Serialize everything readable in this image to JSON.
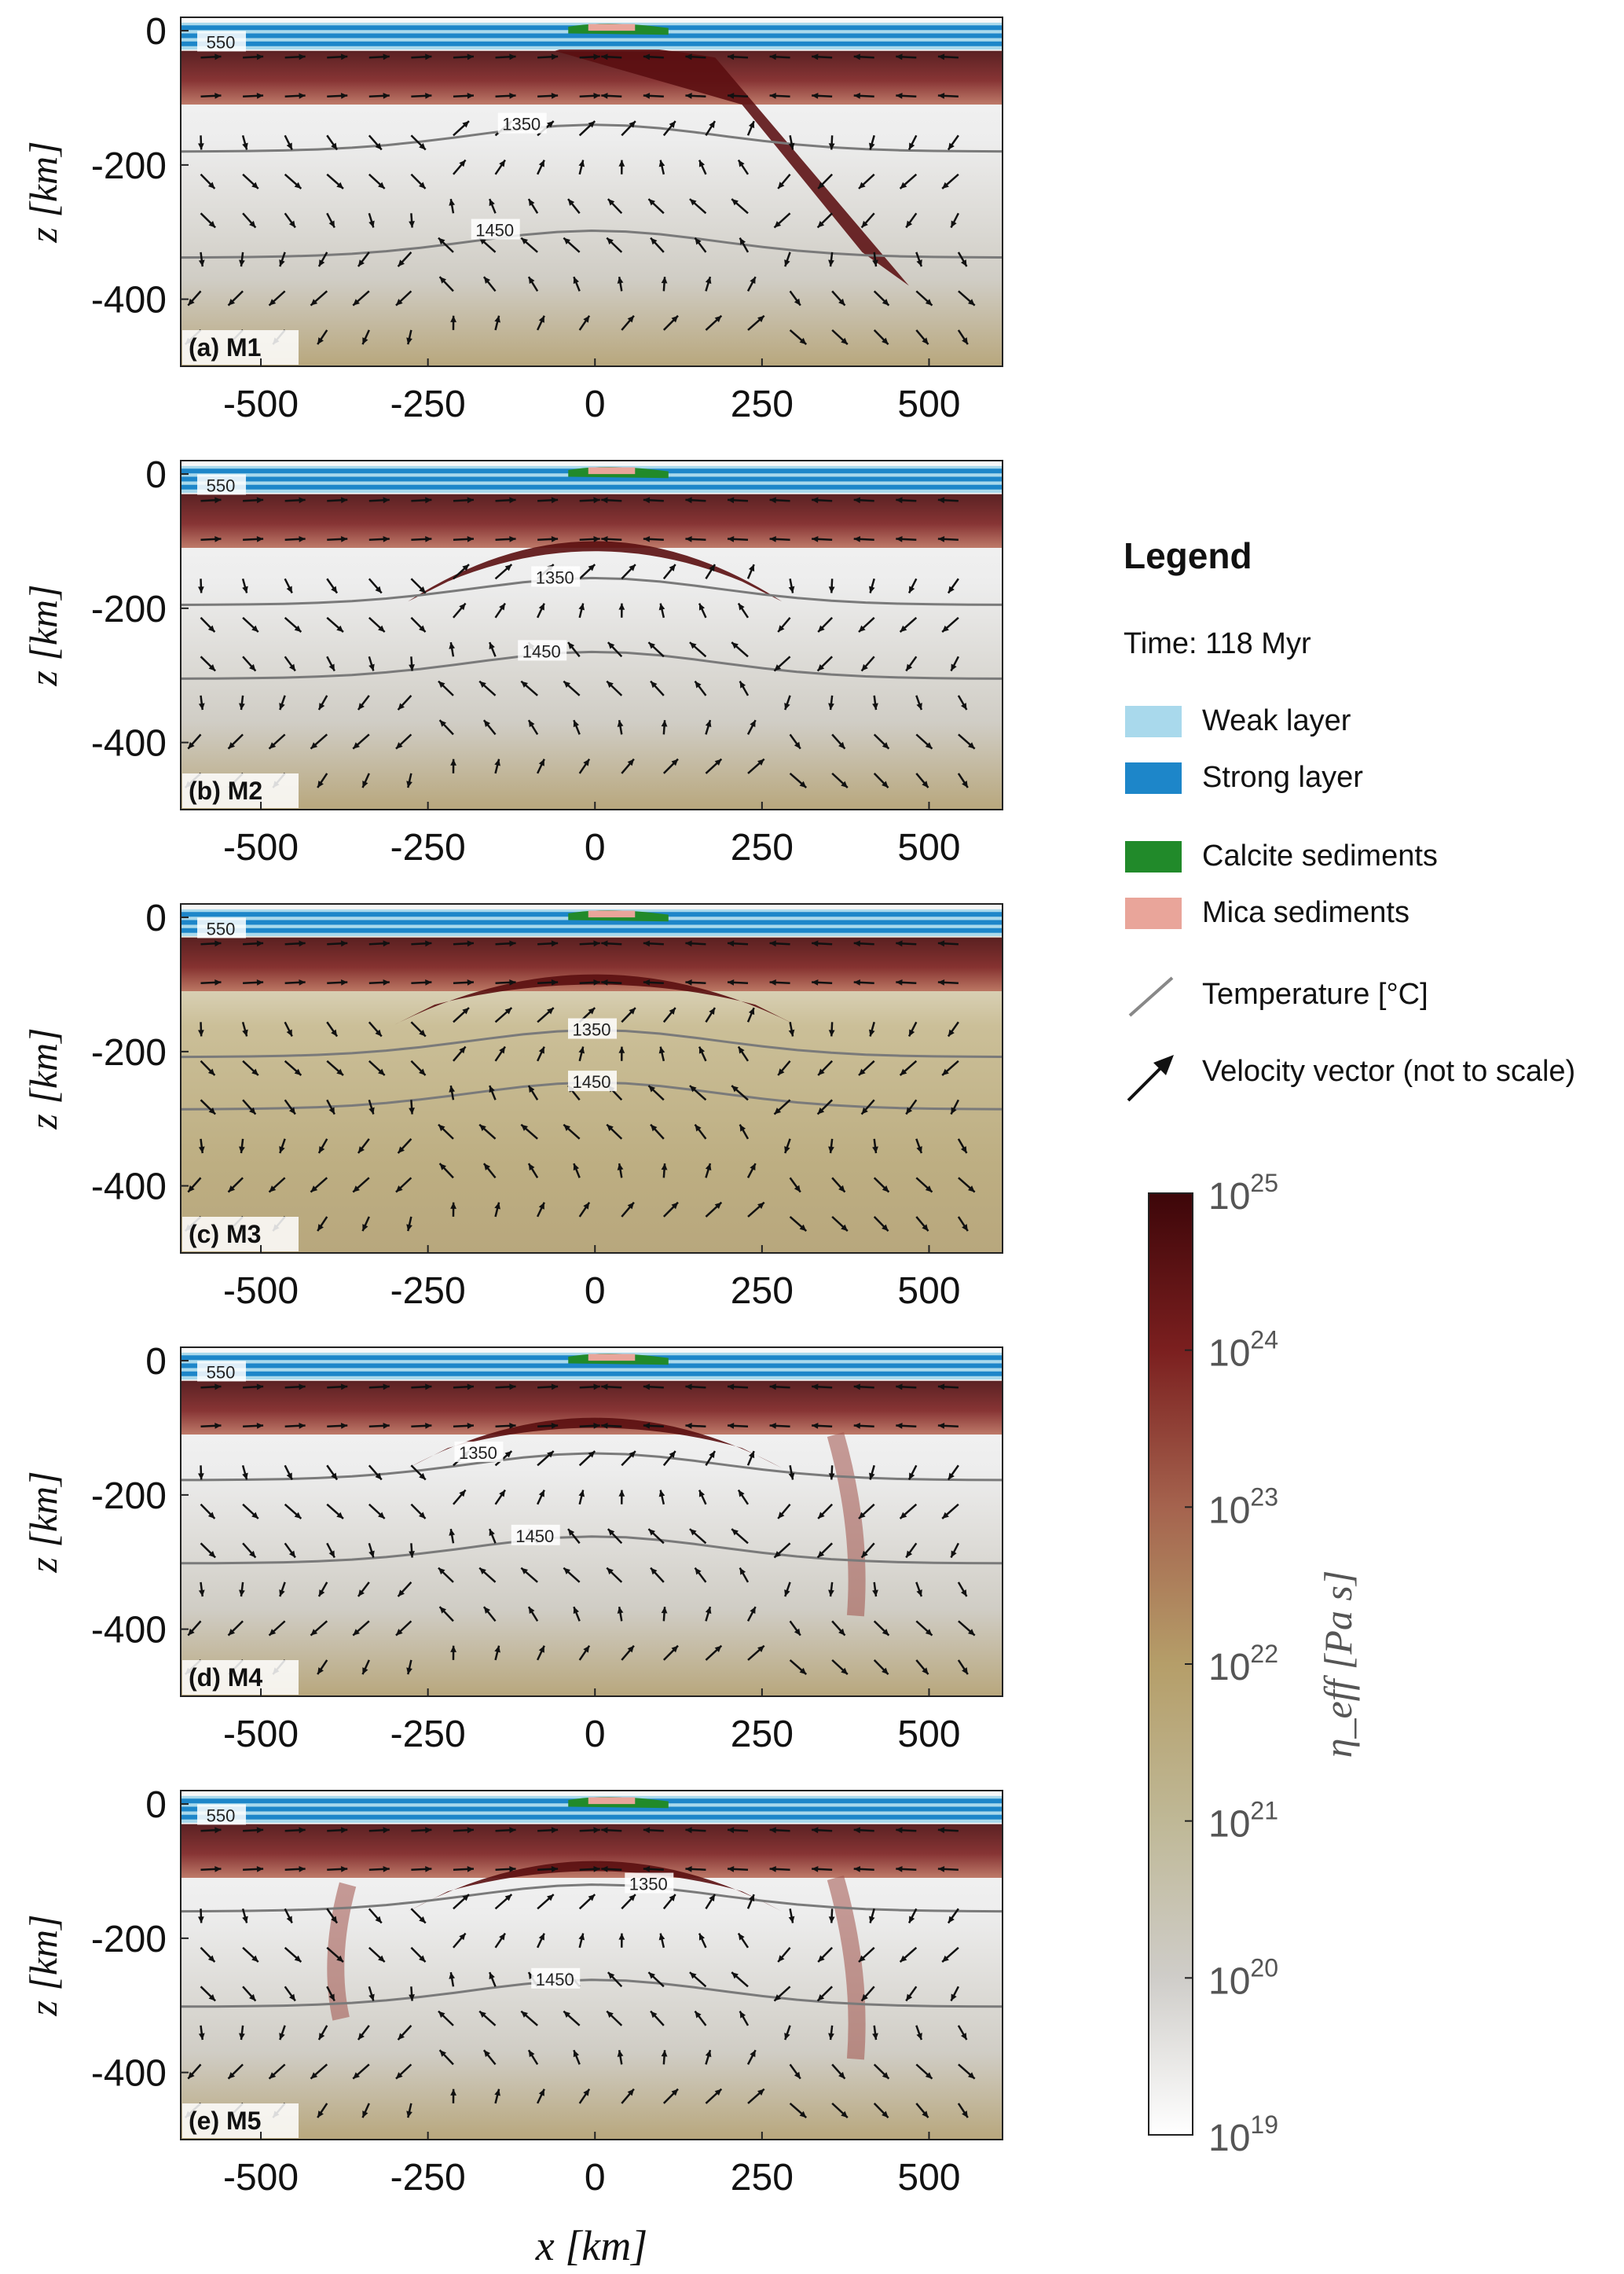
{
  "chart_data": {
    "type": "heatmap",
    "description_fields": "five model cross-sections sharing axes",
    "xlabel": "x [km]",
    "ylabel": "z [km]",
    "xlim": [
      -620,
      610
    ],
    "ylim": [
      -500,
      20
    ],
    "xticks": [
      -500,
      -250,
      0,
      250,
      500
    ],
    "yticks": [
      0,
      -200,
      -400
    ],
    "tick_labels": {
      "x": [
        "-500",
        "-250",
        "0",
        "250",
        "500"
      ],
      "y": [
        "0",
        "-200",
        "-400"
      ]
    },
    "colorbar": {
      "label": "η_eff [Pa s]",
      "scale": "log",
      "range": [
        19,
        25
      ],
      "tick_exponents": [
        "25",
        "24",
        "23",
        "22",
        "21",
        "20",
        "19"
      ],
      "colors": [
        "#ffffff",
        "#cfcdc9",
        "#bfb896",
        "#b59e69",
        "#a5634e",
        "#7b1f1f",
        "#3d0609"
      ]
    },
    "panels": [
      {
        "label": "(a) M1",
        "isotherms": [
          {
            "label": "550",
            "label_x": -560,
            "label_z": -18
          },
          {
            "label": "1350",
            "label_x": -110,
            "label_z": -140
          },
          {
            "label": "1450",
            "label_x": -150,
            "label_z": -298
          }
        ],
        "structure": "subduction-right"
      },
      {
        "label": "(b) M2",
        "isotherms": [
          {
            "label": "550",
            "label_x": -560,
            "label_z": -18
          },
          {
            "label": "1350",
            "label_x": -60,
            "label_z": -155
          },
          {
            "label": "1450",
            "label_x": -80,
            "label_z": -265
          }
        ],
        "structure": "dome-symmetric"
      },
      {
        "label": "(c) M3",
        "isotherms": [
          {
            "label": "550",
            "label_x": -560,
            "label_z": -18
          },
          {
            "label": "1350",
            "label_x": -5,
            "label_z": -168
          },
          {
            "label": "1450",
            "label_x": -5,
            "label_z": -246
          }
        ],
        "structure": "dome-dense"
      },
      {
        "label": "(d) M4",
        "isotherms": [
          {
            "label": "550",
            "label_x": -560,
            "label_z": -18
          },
          {
            "label": "1350",
            "label_x": -175,
            "label_z": -138
          },
          {
            "label": "1450",
            "label_x": -90,
            "label_z": -262
          }
        ],
        "structure": "dome-right-drip"
      },
      {
        "label": "(e) M5",
        "isotherms": [
          {
            "label": "550",
            "label_x": -560,
            "label_z": -18
          },
          {
            "label": "1350",
            "label_x": 80,
            "label_z": -120
          },
          {
            "label": "1450",
            "label_x": -60,
            "label_z": -262
          }
        ],
        "structure": "dome-drips-both"
      }
    ]
  },
  "legend": {
    "title": "Legend",
    "time": "Time: 118 Myr",
    "items": [
      {
        "label": "Weak layer",
        "color": "#a9d9ec"
      },
      {
        "label": "Strong layer",
        "color": "#1d86c9"
      },
      {
        "label": "Calcite sediments",
        "color": "#218a2a"
      },
      {
        "label": "Mica sediments",
        "color": "#e9a59a"
      },
      {
        "label": "Temperature [°C]",
        "icon": "temperature-line-icon"
      },
      {
        "label": "Velocity vector (not to scale)",
        "icon": "velocity-arrow-icon"
      }
    ]
  }
}
